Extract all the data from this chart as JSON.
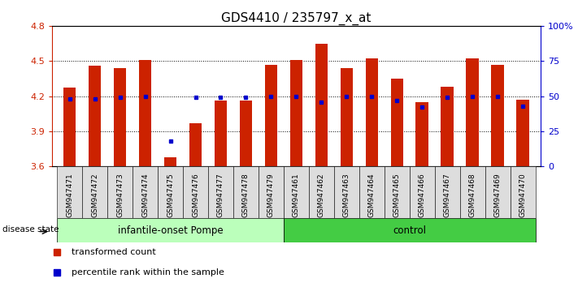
{
  "title": "GDS4410 / 235797_x_at",
  "samples": [
    "GSM947471",
    "GSM947472",
    "GSM947473",
    "GSM947474",
    "GSM947475",
    "GSM947476",
    "GSM947477",
    "GSM947478",
    "GSM947479",
    "GSM947461",
    "GSM947462",
    "GSM947463",
    "GSM947464",
    "GSM947465",
    "GSM947466",
    "GSM947467",
    "GSM947468",
    "GSM947469",
    "GSM947470"
  ],
  "transformed_count": [
    4.27,
    4.46,
    4.44,
    4.51,
    3.68,
    3.97,
    4.16,
    4.16,
    4.47,
    4.51,
    4.65,
    4.44,
    4.52,
    4.35,
    4.15,
    4.28,
    4.52,
    4.47,
    4.17
  ],
  "percentile": [
    0.48,
    0.48,
    0.49,
    0.5,
    0.18,
    0.49,
    0.49,
    0.49,
    0.5,
    0.5,
    0.46,
    0.5,
    0.5,
    0.47,
    0.42,
    0.49,
    0.5,
    0.5,
    0.43
  ],
  "group1_count": 9,
  "group2_count": 10,
  "group1_label": "infantile-onset Pompe",
  "group2_label": "control",
  "group1_color": "#bbffbb",
  "group2_color": "#44cc44",
  "bar_color": "#cc2200",
  "dot_color": "#0000cc",
  "ylim_left": [
    3.6,
    4.8
  ],
  "ylim_right": [
    0,
    100
  ],
  "yticks_left": [
    3.6,
    3.9,
    4.2,
    4.5,
    4.8
  ],
  "yticks_right": [
    0,
    25,
    50,
    75,
    100
  ],
  "disease_state_label": "disease state",
  "legend_bar_label": "transformed count",
  "legend_dot_label": "percentile rank within the sample",
  "bar_width": 0.5,
  "background_color": "#ffffff",
  "sample_box_color": "#dddddd"
}
